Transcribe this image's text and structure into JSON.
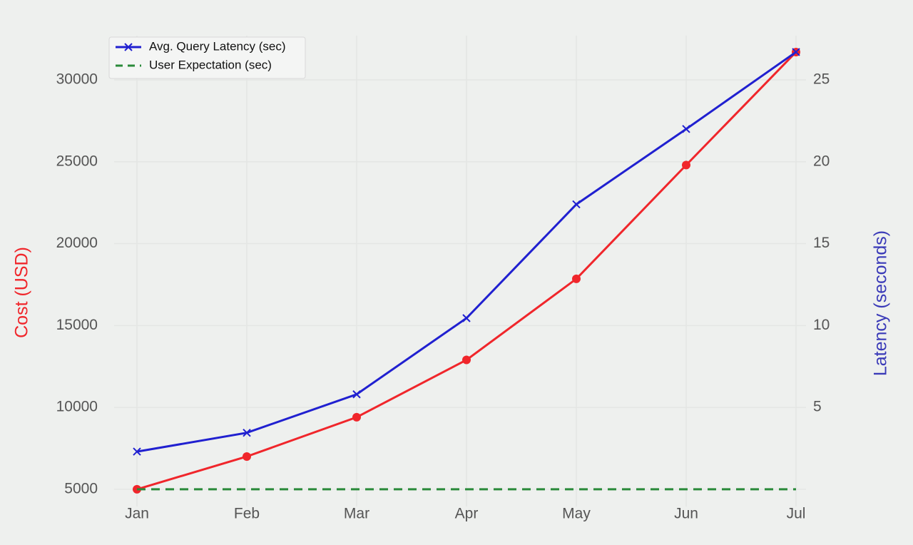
{
  "chart_data": {
    "type": "line",
    "categories": [
      "Jan",
      "Feb",
      "Mar",
      "Apr",
      "May",
      "Jun",
      "Jul"
    ],
    "series": [
      {
        "color": "#f0262b",
        "marker": "o",
        "values": [
          5000,
          7000,
          9400,
          12900,
          17850,
          24800,
          31700
        ]
      },
      {
        "name": "Avg. Query Latency (sec)",
        "color": "#2020d0",
        "marker": "x",
        "axis": "y2",
        "values": [
          2.3,
          3.45,
          5.8,
          10.45,
          17.4,
          22.0,
          26.7
        ]
      },
      {
        "name": "User Expectation (sec)",
        "color": "#2a8a3a",
        "dash": true,
        "axis": "y2",
        "values": [
          0,
          0,
          0,
          0,
          0,
          0,
          0
        ]
      }
    ],
    "ylabel": "Cost (USD)",
    "ylabel_color": "#f0262b",
    "y2label": "Latency (seconds)",
    "y2label_color": "#3a3ab8",
    "ylim": [
      3950,
      32700
    ],
    "yticks": [
      5000,
      10000,
      15000,
      20000,
      25000,
      30000
    ],
    "y2lim": [
      -1.05,
      27.7
    ],
    "y2ticks": [
      5,
      10,
      15,
      20,
      25
    ],
    "grid": true,
    "legend": "upper left"
  }
}
